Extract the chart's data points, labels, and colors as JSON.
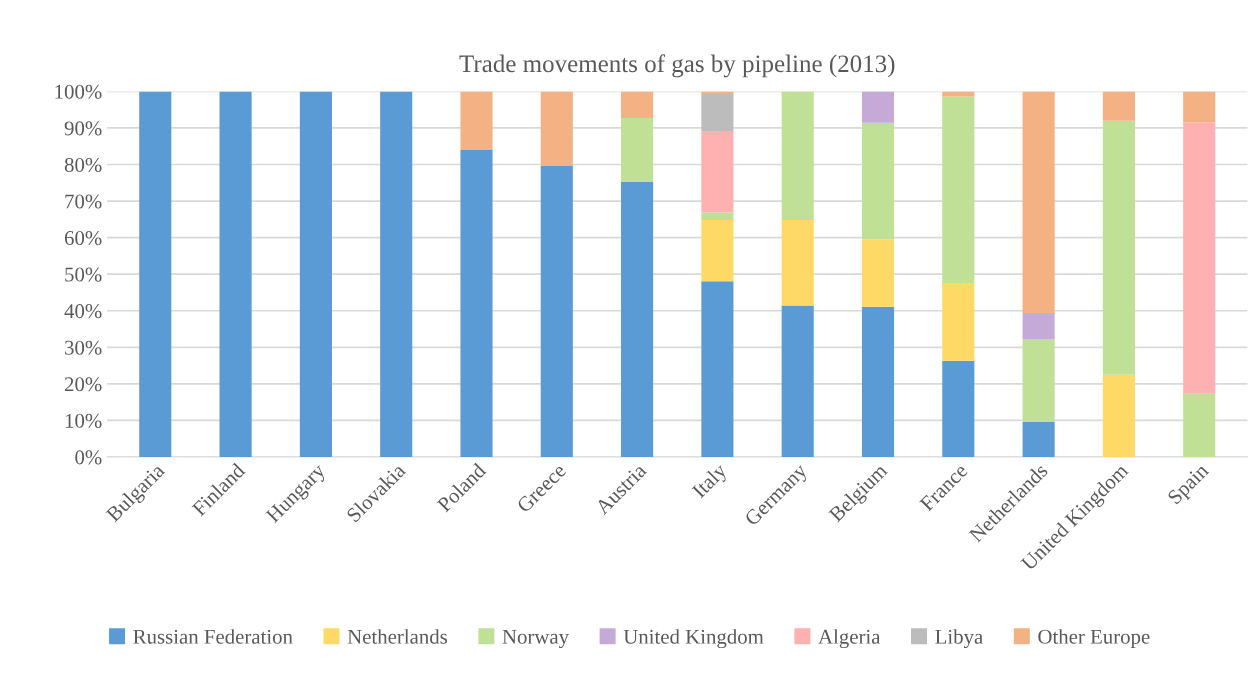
{
  "chart_data": {
    "type": "bar",
    "title": "Trade movements of gas by pipeline (2013)",
    "stacked": true,
    "categories": [
      "Bulgaria",
      "Finland",
      "Hungary",
      "Slovakia",
      "Poland",
      "Greece",
      "Austria",
      "Italy",
      "Germany",
      "Belgium",
      "France",
      "Netherlands",
      "United Kingdom",
      "Spain"
    ],
    "series": [
      {
        "name": "Russian Federation",
        "color": "#5b9bd5",
        "values": [
          100,
          100,
          100,
          100,
          84,
          79.6,
          75.2,
          48.1,
          41.4,
          41.1,
          26.3,
          9.6,
          null,
          null
        ]
      },
      {
        "name": "Netherlands",
        "color": "#ffd966",
        "values": [
          null,
          null,
          null,
          null,
          null,
          null,
          null,
          16.7,
          23.4,
          18.4,
          21.3,
          null,
          22.5,
          null
        ]
      },
      {
        "name": "Norway",
        "color": "#c0e096",
        "values": [
          null,
          null,
          null,
          null,
          null,
          null,
          17.5,
          2.1,
          35.2,
          31.9,
          51,
          22.5,
          69.5,
          17.3
        ]
      },
      {
        "name": "United Kingdom",
        "color": "#c5aad8",
        "values": [
          null,
          null,
          null,
          null,
          null,
          null,
          null,
          null,
          null,
          8.6,
          null,
          7.3,
          null,
          null
        ]
      },
      {
        "name": "Algeria",
        "color": "#ffb0b0",
        "values": [
          null,
          null,
          null,
          null,
          null,
          null,
          null,
          22.3,
          null,
          null,
          null,
          null,
          null,
          74.2
        ]
      },
      {
        "name": "Libya",
        "color": "#bcbcbc",
        "values": [
          null,
          null,
          null,
          null,
          null,
          null,
          null,
          10.1,
          null,
          null,
          null,
          null,
          null,
          null
        ]
      },
      {
        "name": "Other Europe",
        "color": "#f4b183",
        "values": [
          null,
          null,
          null,
          null,
          16,
          20.4,
          7.3,
          0.7,
          null,
          null,
          1.4,
          60.6,
          8,
          8.5
        ]
      }
    ],
    "ylim": [
      0,
      100
    ],
    "yticks": [
      {
        "value": 0,
        "label": "0%"
      },
      {
        "value": 10,
        "label": "10%"
      },
      {
        "value": 20,
        "label": "20%"
      },
      {
        "value": 30,
        "label": "30%"
      },
      {
        "value": 40,
        "label": "40%"
      },
      {
        "value": 50,
        "label": "50%"
      },
      {
        "value": 60,
        "label": "60%"
      },
      {
        "value": 70,
        "label": "70%"
      },
      {
        "value": 80,
        "label": "80%"
      },
      {
        "value": 90,
        "label": "90%"
      },
      {
        "value": 100,
        "label": "100%"
      }
    ],
    "grid": "y",
    "legend": "bottom"
  }
}
